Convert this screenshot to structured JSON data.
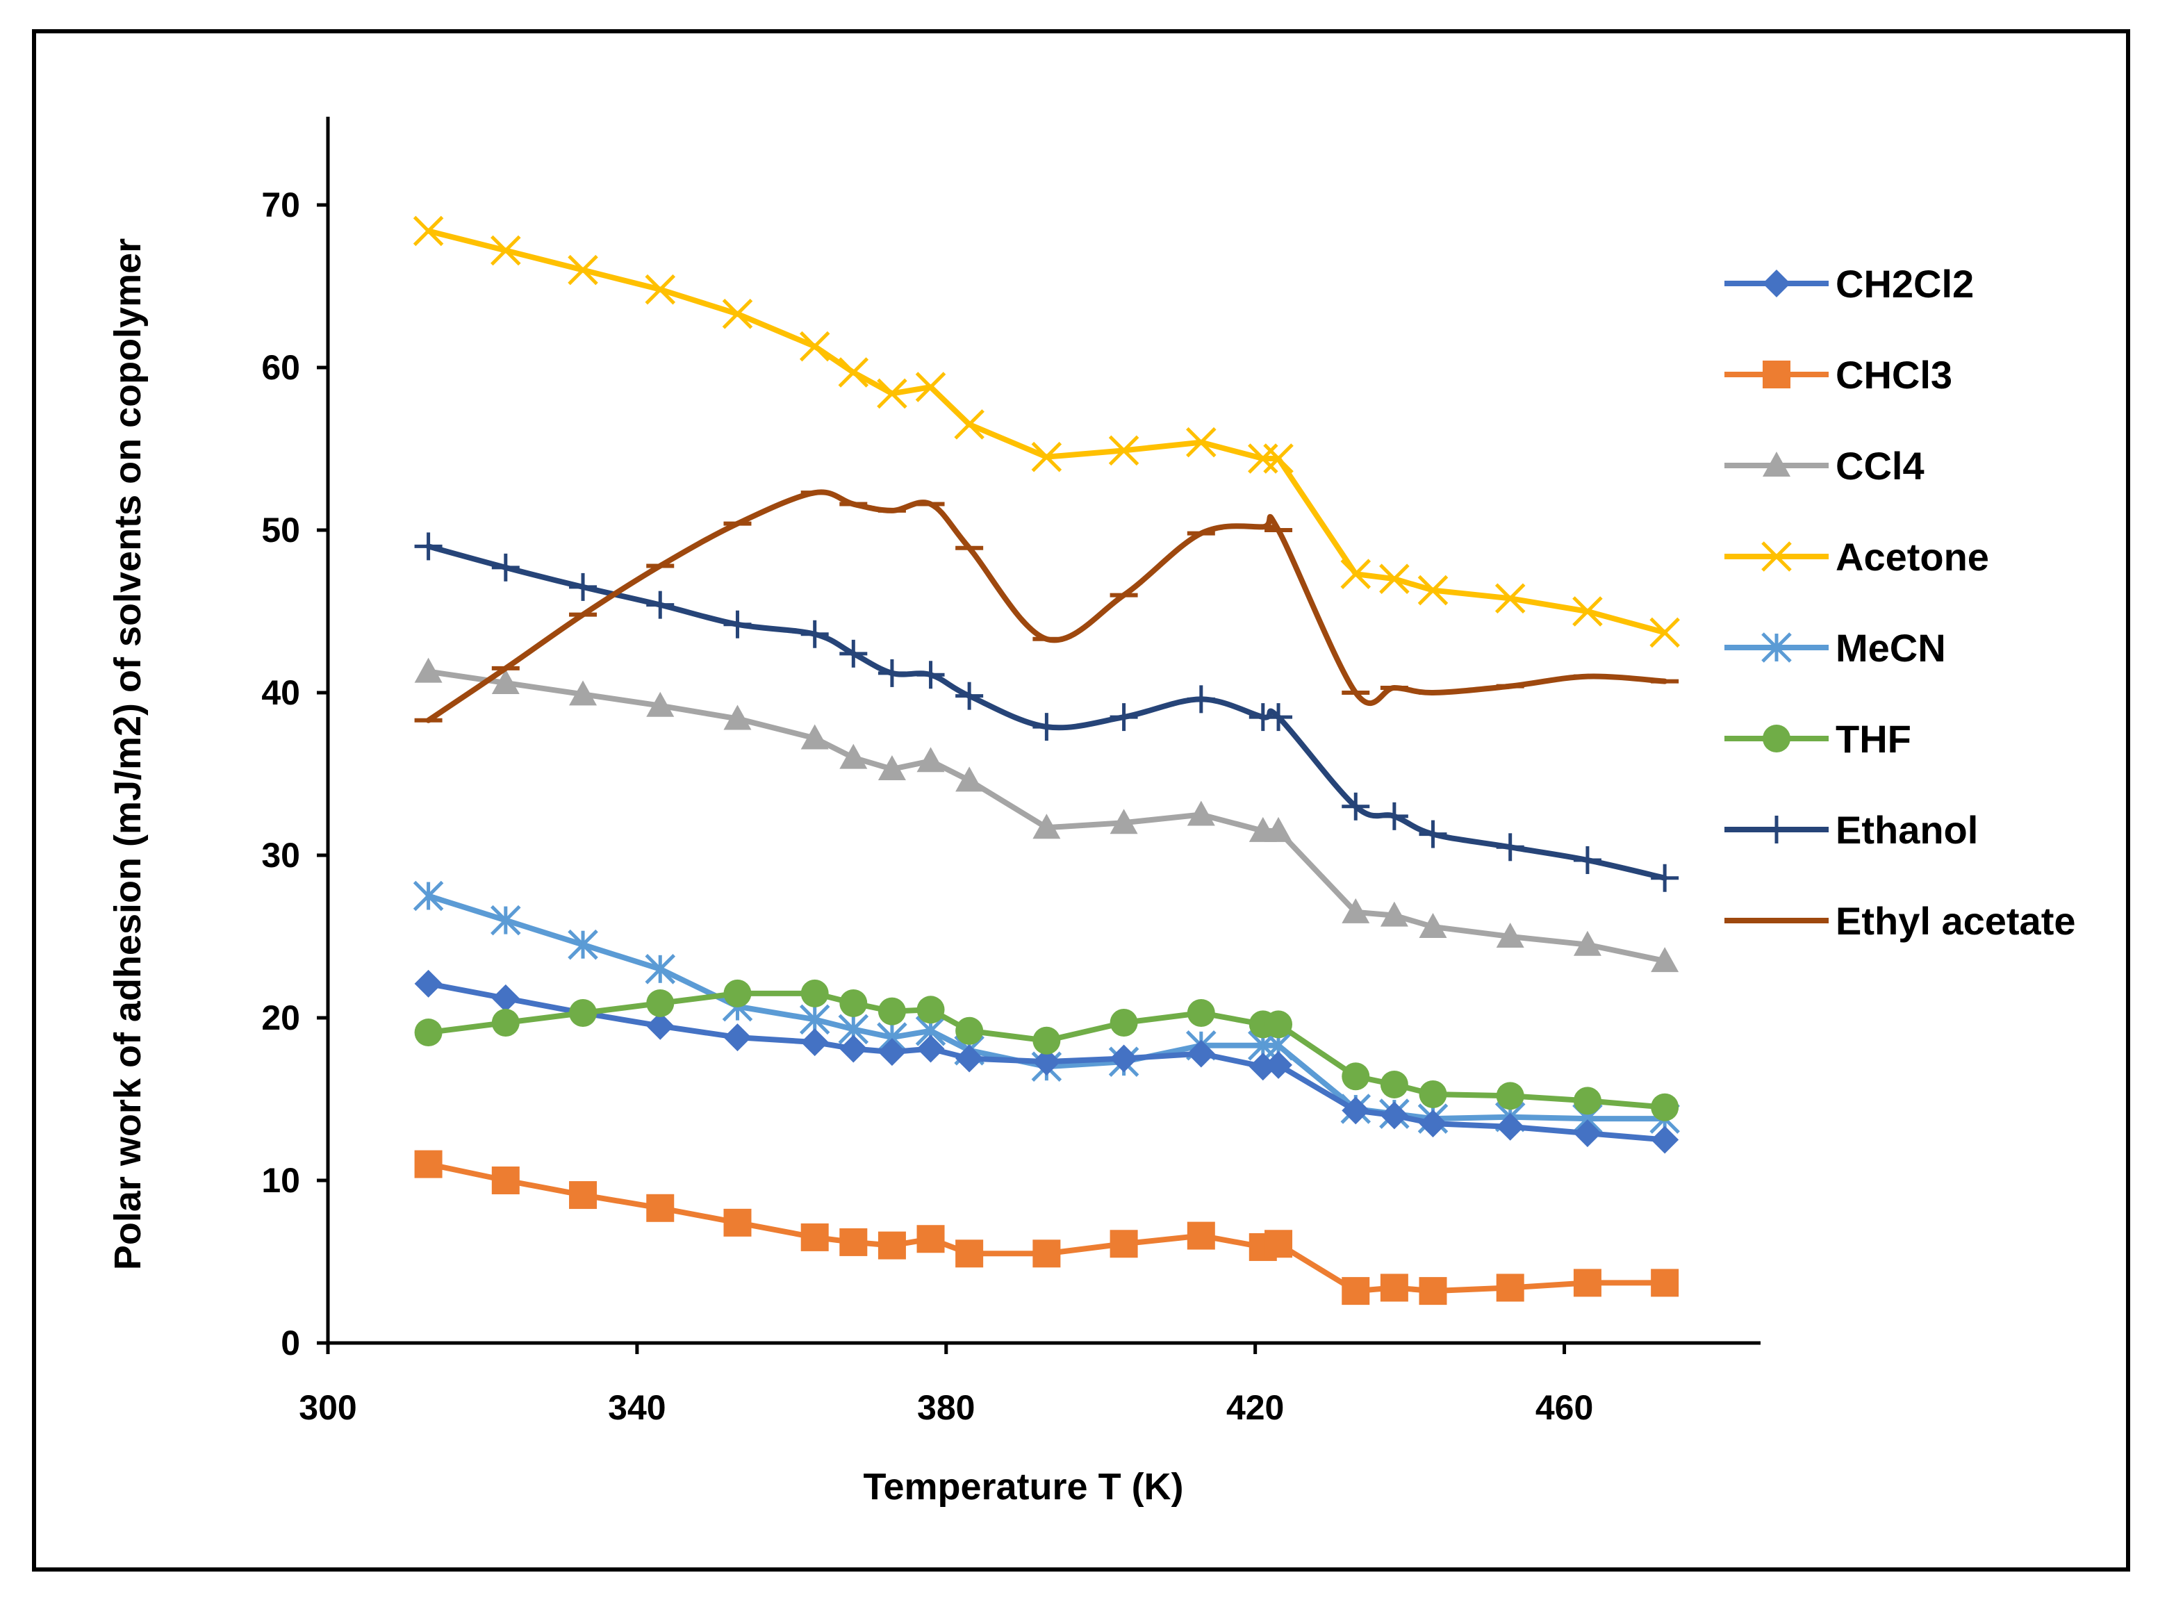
{
  "chart_data": {
    "type": "line",
    "title": "",
    "xlabel": "Temperature T (K)",
    "ylabel": "Polar work of adhesion (mJ/m2) of solvents on copolymer",
    "xlim": [
      300,
      480
    ],
    "ylim": [
      0,
      75
    ],
    "xticks": [
      300,
      340,
      380,
      420,
      460
    ],
    "yticks": [
      0,
      10,
      20,
      30,
      40,
      50,
      60,
      70
    ],
    "grid": false,
    "legend_position": "right",
    "x": [
      313,
      323,
      333,
      343,
      353,
      363,
      368,
      373,
      378,
      383,
      393,
      403,
      413,
      421,
      423,
      433,
      438,
      443,
      453,
      463,
      473
    ],
    "series": [
      {
        "name": "CH2Cl2",
        "color": "#4472C4",
        "marker": "diamond",
        "smooth": false,
        "values": [
          22.1,
          21.2,
          20.3,
          19.5,
          18.8,
          18.5,
          18.1,
          17.9,
          18.1,
          17.5,
          17.3,
          17.5,
          17.8,
          17.0,
          17.1,
          14.3,
          14.0,
          13.5,
          13.3,
          12.9,
          12.5
        ]
      },
      {
        "name": "CHCl3",
        "color": "#ED7D31",
        "marker": "square",
        "smooth": false,
        "values": [
          11.0,
          10.0,
          9.1,
          8.3,
          7.4,
          6.5,
          6.2,
          6.0,
          6.4,
          5.5,
          5.5,
          6.1,
          6.6,
          5.9,
          6.1,
          3.2,
          3.4,
          3.2,
          3.4,
          3.7,
          3.7
        ]
      },
      {
        "name": "CCl4",
        "color": "#A5A5A5",
        "marker": "triangle",
        "smooth": false,
        "values": [
          41.3,
          40.6,
          39.9,
          39.2,
          38.4,
          37.2,
          36.0,
          35.3,
          35.8,
          34.6,
          31.7,
          32.0,
          32.5,
          31.5,
          31.5,
          26.5,
          26.3,
          25.6,
          25.0,
          24.5,
          23.5
        ]
      },
      {
        "name": "Acetone",
        "color": "#FFC000",
        "marker": "x",
        "smooth": false,
        "values": [
          68.4,
          67.2,
          66.0,
          64.8,
          63.3,
          61.3,
          59.7,
          58.4,
          58.8,
          56.5,
          54.5,
          54.9,
          55.4,
          54.4,
          54.4,
          47.3,
          47.0,
          46.3,
          45.8,
          45.0,
          43.7
        ]
      },
      {
        "name": "MeCN",
        "color": "#5B9BD5",
        "marker": "star",
        "smooth": false,
        "values": [
          27.5,
          26.0,
          24.5,
          23.0,
          20.7,
          19.9,
          19.3,
          18.8,
          19.2,
          18.0,
          17.0,
          17.3,
          18.3,
          18.3,
          18.3,
          14.4,
          14.1,
          13.8,
          13.9,
          13.8,
          13.8
        ]
      },
      {
        "name": "THF",
        "color": "#70AD47",
        "marker": "circle",
        "smooth": false,
        "values": [
          19.1,
          19.7,
          20.3,
          20.9,
          21.5,
          21.5,
          20.9,
          20.4,
          20.5,
          19.2,
          18.6,
          19.7,
          20.3,
          19.6,
          19.6,
          16.4,
          15.9,
          15.3,
          15.2,
          14.9,
          14.5
        ]
      },
      {
        "name": "Ethanol",
        "color": "#264478",
        "marker": "plus",
        "smooth": true,
        "values": [
          49.0,
          47.7,
          46.5,
          45.4,
          44.2,
          43.6,
          42.4,
          41.2,
          41.1,
          39.8,
          37.9,
          38.5,
          39.6,
          38.5,
          38.5,
          33.0,
          32.4,
          31.3,
          30.5,
          29.7,
          28.6
        ]
      },
      {
        "name": "Ethyl acetate",
        "color": "#9E480E",
        "marker": "dash",
        "smooth": true,
        "values": [
          38.3,
          41.5,
          44.8,
          47.8,
          50.4,
          52.3,
          51.6,
          51.2,
          51.6,
          48.9,
          43.3,
          46.0,
          49.8,
          50.2,
          50.0,
          40.0,
          40.3,
          40.0,
          40.4,
          41.0,
          40.7
        ]
      }
    ]
  }
}
